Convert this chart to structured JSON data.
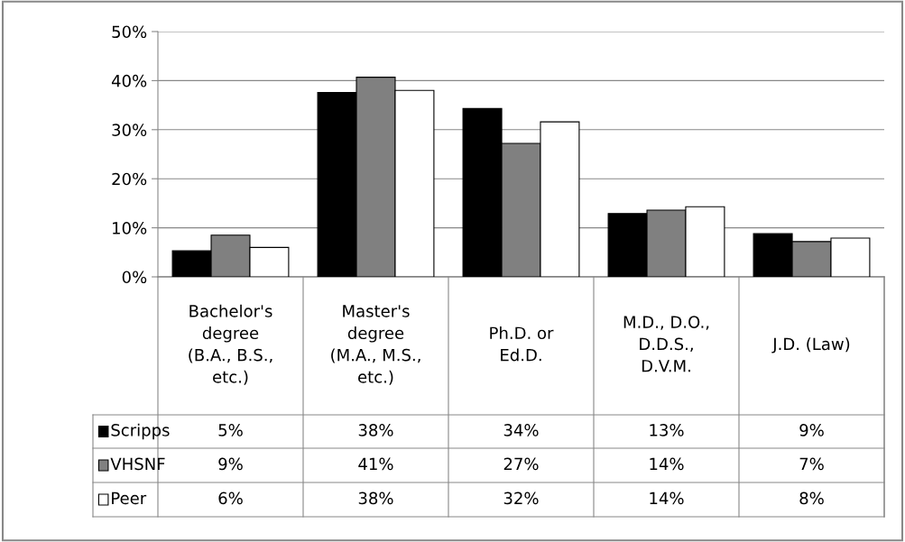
{
  "chart_data": {
    "type": "bar",
    "categories": [
      "Bachelor's\ndegree\n(B.A., B.S.,\netc.)",
      "Master's\ndegree\n(M.A., M.S.,\netc.)",
      "Ph.D. or\nEd.D.",
      "M.D., D.O.,\nD.D.S.,\nD.V.M.",
      "J.D. (Law)"
    ],
    "series": [
      {
        "name": "Scripps",
        "color": "#000000",
        "values": [
          5.3,
          37.6,
          34.3,
          12.9,
          8.8
        ],
        "value_labels": [
          "5%",
          "38%",
          "34%",
          "13%",
          "9%"
        ]
      },
      {
        "name": "VHSNF",
        "color": "#808080",
        "values": [
          8.5,
          40.7,
          27.2,
          13.6,
          7.2
        ],
        "value_labels": [
          "9%",
          "41%",
          "27%",
          "14%",
          "7%"
        ]
      },
      {
        "name": "Peer",
        "color": "#ffffff",
        "values": [
          6.0,
          38.0,
          31.6,
          14.3,
          7.9
        ],
        "value_labels": [
          "6%",
          "38%",
          "32%",
          "14%",
          "8%"
        ]
      }
    ],
    "ylim": [
      0,
      50
    ],
    "yticks": [
      {
        "value": 0,
        "label": "0%"
      },
      {
        "value": 10,
        "label": "10%"
      },
      {
        "value": 20,
        "label": "20%"
      },
      {
        "value": 30,
        "label": "30%"
      },
      {
        "value": 40,
        "label": "40%"
      },
      {
        "value": 50,
        "label": "50%"
      }
    ],
    "grid": "y",
    "legend": "bottom"
  }
}
